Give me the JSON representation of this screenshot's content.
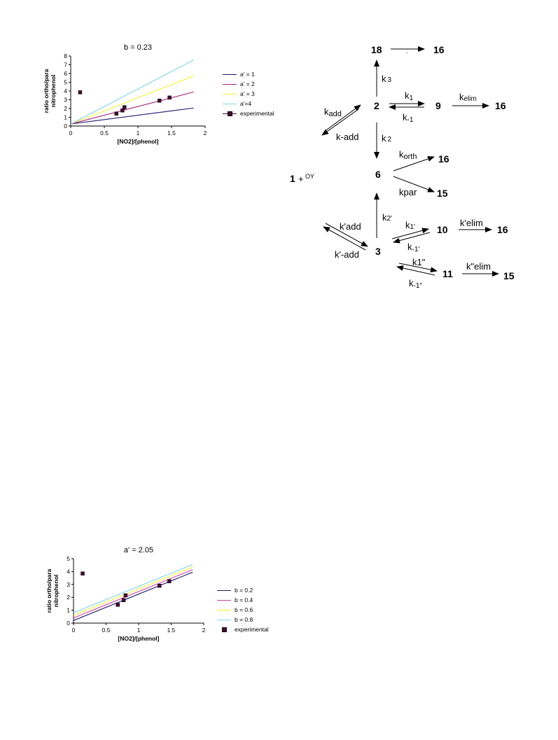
{
  "chart_data": [
    {
      "type": "line",
      "title": "b = 0.23",
      "xlabel": "[NO2]/[phenol]",
      "ylabel_lines": [
        "ratio ortho/para",
        "nitrophenol"
      ],
      "xlim": [
        0,
        2
      ],
      "ylim": [
        0,
        8
      ],
      "xticks": [
        "0",
        "0.5",
        "1",
        "1.5",
        "2"
      ],
      "yticks": [
        "0",
        "1",
        "2",
        "3",
        "4",
        "5",
        "6",
        "7",
        "8"
      ],
      "grid": false,
      "legend_position": "right",
      "series": [
        {
          "name": "a' = 1",
          "color": "#1f1a6e",
          "x": [
            0,
            1.83
          ],
          "y": [
            0.23,
            2.06
          ]
        },
        {
          "name": "a' = 2",
          "color": "#a0207a",
          "x": [
            0,
            1.83
          ],
          "y": [
            0.23,
            3.89
          ]
        },
        {
          "name": "a' = 3",
          "color": "#f2f035",
          "x": [
            0,
            1.83
          ],
          "y": [
            0.23,
            5.72
          ]
        },
        {
          "name": "a'=4",
          "color": "#7fd4e6",
          "x": [
            0,
            1.83
          ],
          "y": [
            0.23,
            7.55
          ]
        }
      ],
      "experimental": {
        "name": "experimental",
        "color": "#3d0f2e",
        "points": [
          [
            0.14,
            3.85
          ],
          [
            0.68,
            1.42
          ],
          [
            0.77,
            1.78
          ],
          [
            0.8,
            2.15
          ],
          [
            1.32,
            2.9
          ],
          [
            1.47,
            3.25
          ]
        ]
      }
    },
    {
      "type": "line",
      "title": "a' = 2.05",
      "xlabel": "[NO2]/[phenol]",
      "ylabel_lines": [
        "ratio ortho/para",
        "nitrophenol"
      ],
      "xlim": [
        0,
        2
      ],
      "ylim": [
        0,
        5
      ],
      "xticks": [
        "0",
        "0.5",
        "1",
        "1.5",
        "2"
      ],
      "yticks": [
        "0",
        "1",
        "2",
        "3",
        "4",
        "5"
      ],
      "grid": false,
      "legend_position": "right",
      "series": [
        {
          "name": "b = 0.2",
          "color": "#1f1a6e",
          "x": [
            0,
            1.83
          ],
          "y": [
            0.2,
            3.95
          ]
        },
        {
          "name": "b = 0.4",
          "color": "#d0409a",
          "x": [
            0,
            1.83
          ],
          "y": [
            0.4,
            4.15
          ]
        },
        {
          "name": "b = 0.6",
          "color": "#f2f035",
          "x": [
            0,
            1.83
          ],
          "y": [
            0.6,
            4.35
          ]
        },
        {
          "name": "b = 0.8",
          "color": "#7fd4e6",
          "x": [
            0,
            1.83
          ],
          "y": [
            0.8,
            4.55
          ]
        }
      ],
      "experimental": {
        "name": "experimental",
        "color": "#3d0f2e",
        "points": [
          [
            0.14,
            3.85
          ],
          [
            0.68,
            1.42
          ],
          [
            0.77,
            1.78
          ],
          [
            0.8,
            2.15
          ],
          [
            1.32,
            2.9
          ],
          [
            1.47,
            3.25
          ]
        ]
      }
    }
  ],
  "scheme": {
    "nodes": {
      "n18": "18",
      "n16a": "16",
      "n2": "2",
      "n9": "9",
      "n16b": "16",
      "start": "1",
      "start_plus": "+",
      "start_sup": "OY",
      "n6": "6",
      "n16c": "16",
      "n15a": "15",
      "n3": "3",
      "n10": "10",
      "n16d": "16",
      "n11": "11",
      "n15b": "15",
      "dot": "."
    },
    "rates": {
      "k3": "k",
      "k3_sub": "3",
      "k1": "k",
      "k1_sub": "1",
      "km1": "k",
      "km1_sub": "-1",
      "kelim": "k",
      "kelim_sub": "elim",
      "kadd": "k",
      "kadd_sub": "add",
      "kmadd": "k-add",
      "k2": "k",
      "k2_sub": "2",
      "korth": "k",
      "korth_sub": "orth",
      "kpar": "kpar",
      "k2p": "k",
      "k2p_sub": "2'",
      "kpadd": "k'add",
      "kpmadd": "k'-add",
      "k1p": "k",
      "k1p_sub": "1'",
      "km1p": "k",
      "km1p_sub": "-1'",
      "kpelim": "k'elim",
      "k1pp": "k1\"",
      "km1pp": "k",
      "km1pp_sub": "-1\"",
      "kppelim": "k\"elim"
    }
  }
}
